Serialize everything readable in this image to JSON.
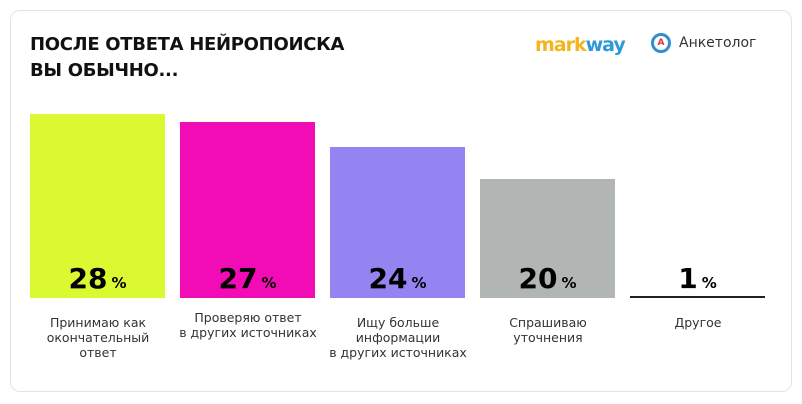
{
  "title_lines": [
    "ПОСЛЕ ОТВЕТА НЕЙРОПОИСКА",
    "ВЫ ОБЫЧНО..."
  ],
  "logos": {
    "markway_a": "mark",
    "markway_b": "way",
    "anketolog": "Анкетолог",
    "anketolog_mark": "А"
  },
  "chart_data": {
    "type": "bar",
    "title": "ПОСЛЕ ОТВЕТА НЕЙРОПОИСКА ВЫ ОБЫЧНО...",
    "unit": "%",
    "categories": [
      "Принимаю как окончательный ответ",
      "Проверяю ответ в других источниках",
      "Ищу больше информации в других источниках",
      "Спрашиваю уточнения",
      "Другое"
    ],
    "label_lines": [
      [
        "Принимаю как",
        "окончательный",
        "ответ"
      ],
      [
        "Проверяю ответ",
        "в других источниках"
      ],
      [
        "Ищу больше",
        "информации",
        "в других источниках"
      ],
      [
        "Спрашиваю",
        "уточнения"
      ],
      [
        "Другое"
      ]
    ],
    "values": [
      28,
      27,
      24,
      20,
      1
    ],
    "colors": [
      "#dbf931",
      "#f20cb6",
      "#9384f2",
      "#b1b5b4",
      "#222222"
    ]
  }
}
